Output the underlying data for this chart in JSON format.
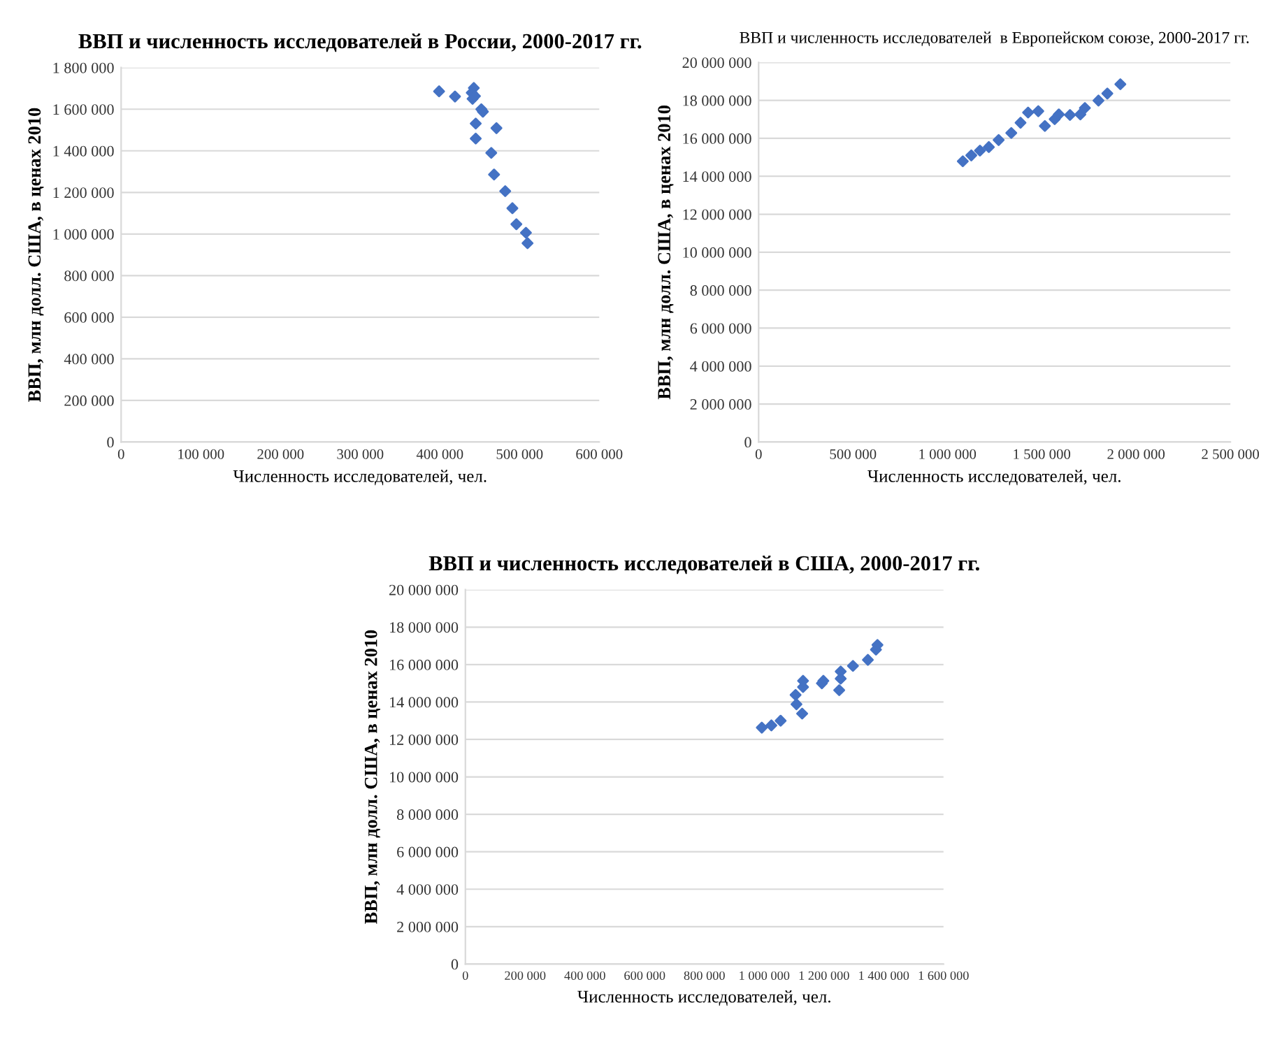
{
  "chart_data": [
    {
      "type": "scatter",
      "title": "ВВП и численность исследователей в России, 2000-2017 гг.",
      "xlabel": "Численность исследователей, чел.",
      "ylabel": "ВВП, млн долл. США, в ценах 2010",
      "marker": "diamond",
      "grid": "y",
      "series": [
        {
          "color": "#4472c4",
          "x": [
            399000,
            419000,
            442600,
            440000,
            441000,
            444000,
            452000,
            454000,
            445000,
            445000,
            471000,
            464500,
            468000,
            482000,
            491000,
            496000,
            508000,
            510000
          ],
          "values": [
            1686000,
            1661000,
            1702000,
            1679000,
            1650000,
            1663000,
            1600000,
            1588000,
            1531000,
            1459000,
            1509000,
            1390000,
            1286000,
            1206000,
            1124000,
            1047000,
            1006000,
            956000
          ]
        }
      ],
      "xlim": [
        0,
        600000
      ],
      "ylim": [
        0,
        1800000
      ],
      "xticks": [
        0,
        {
          "value": 100000,
          "label": "100 000"
        },
        {
          "value": 200000,
          "label": "200 000"
        },
        {
          "value": 300000,
          "label": "300 000"
        },
        {
          "value": 400000,
          "label": "400 000"
        },
        {
          "value": 500000,
          "label": "500 000"
        },
        {
          "value": 600000,
          "label": "600 000"
        }
      ],
      "yticks": [
        0,
        {
          "value": 200000,
          "label": "200 000"
        },
        {
          "value": 400000,
          "label": "400 000"
        },
        {
          "value": 600000,
          "label": "600 000"
        },
        {
          "value": 800000,
          "label": "800 000"
        },
        {
          "value": 1000000,
          "label": "1 000 000"
        },
        {
          "value": 1200000,
          "label": "1 200 000"
        },
        {
          "value": 1400000,
          "label": "1 400 000"
        },
        {
          "value": 1600000,
          "label": "1 600 000"
        },
        {
          "value": 1800000,
          "label": "1 800 000"
        }
      ]
    },
    {
      "type": "scatter",
      "title": "ВВП и численность исследователей  в Европейском союзе, 2000-2017 гг.",
      "xlabel": "Численность исследователей, чел.",
      "ylabel": "ВВП, млн долл. США, в ценах 2010",
      "marker": "diamond",
      "grid": "y",
      "series": [
        {
          "color": "#4472c4",
          "x": [
            1082000,
            1127000,
            1173000,
            1220000,
            1272000,
            1339000,
            1388000,
            1428000,
            1482000,
            1517000,
            1569000,
            1591000,
            1650000,
            1705000,
            1729000,
            1801000,
            1848000,
            1917000
          ],
          "values": [
            14790000,
            15100000,
            15350000,
            15540000,
            15910000,
            16280000,
            16820000,
            17360000,
            17430000,
            16650000,
            17010000,
            17260000,
            17230000,
            17260000,
            17600000,
            17990000,
            18360000,
            18850000
          ]
        }
      ],
      "xlim": [
        0,
        2500000
      ],
      "ylim": [
        0,
        20000000
      ],
      "xticks": [
        0,
        {
          "value": 500000,
          "label": "500 000"
        },
        {
          "value": 1000000,
          "label": "1 000 000"
        },
        {
          "value": 1500000,
          "label": "1 500 000"
        },
        {
          "value": 2000000,
          "label": "2 000 000"
        },
        {
          "value": 2500000,
          "label": "2 500 000"
        }
      ],
      "yticks": [
        0,
        {
          "value": 2000000,
          "label": "2 000 000"
        },
        {
          "value": 4000000,
          "label": "4 000 000"
        },
        {
          "value": 6000000,
          "label": "6 000 000"
        },
        {
          "value": 8000000,
          "label": "8 000 000"
        },
        {
          "value": 10000000,
          "label": "10 000 000"
        },
        {
          "value": 12000000,
          "label": "12 000 000"
        },
        {
          "value": 14000000,
          "label": "14 000 000"
        },
        {
          "value": 16000000,
          "label": "16 000 000"
        },
        {
          "value": 18000000,
          "label": "18 000 000"
        },
        {
          "value": 20000000,
          "label": "20 000 000"
        }
      ]
    },
    {
      "type": "scatter",
      "title": "ВВП и численность исследователей в США, 2000-2017 гг.",
      "xlabel": "Численность исследователей, чел.",
      "ylabel": "ВВП, млн долл. США, в ценах 2010",
      "marker": "diamond",
      "grid": "y",
      "series": [
        {
          "color": "#4472c4",
          "x": [
            992000,
            1024000,
            1055000,
            1105000,
            1108000,
            1127000,
            1130000,
            1130000,
            1193000,
            1198000,
            1251000,
            1256000,
            1256000,
            1297000,
            1347000,
            1374000,
            1379000
          ],
          "values": [
            12630000,
            12750000,
            13000000,
            14380000,
            13880000,
            13380000,
            14800000,
            15130000,
            15000000,
            15130000,
            14630000,
            15250000,
            15630000,
            15930000,
            16250000,
            16800000,
            17050000
          ]
        }
      ],
      "xlim": [
        0,
        1600000
      ],
      "ylim": [
        0,
        20000000
      ],
      "xticks": [
        0,
        {
          "value": 200000,
          "label": "200 000"
        },
        {
          "value": 400000,
          "label": "400 000"
        },
        {
          "value": 600000,
          "label": "600 000"
        },
        {
          "value": 800000,
          "label": "800 000"
        },
        {
          "value": 1000000,
          "label": "1 000 000"
        },
        {
          "value": 1200000,
          "label": "1 200 000"
        },
        {
          "value": 1400000,
          "label": "1 400 000"
        },
        {
          "value": 1600000,
          "label": "1 600 000"
        }
      ],
      "yticks": [
        0,
        {
          "value": 2000000,
          "label": "2 000 000"
        },
        {
          "value": 4000000,
          "label": "4 000 000"
        },
        {
          "value": 6000000,
          "label": "6 000 000"
        },
        {
          "value": 8000000,
          "label": "8 000 000"
        },
        {
          "value": 10000000,
          "label": "10 000 000"
        },
        {
          "value": 12000000,
          "label": "12 000 000"
        },
        {
          "value": 14000000,
          "label": "14 000 000"
        },
        {
          "value": 16000000,
          "label": "16 000 000"
        },
        {
          "value": 18000000,
          "label": "18 000 000"
        },
        {
          "value": 20000000,
          "label": "20 000 000"
        }
      ]
    }
  ]
}
